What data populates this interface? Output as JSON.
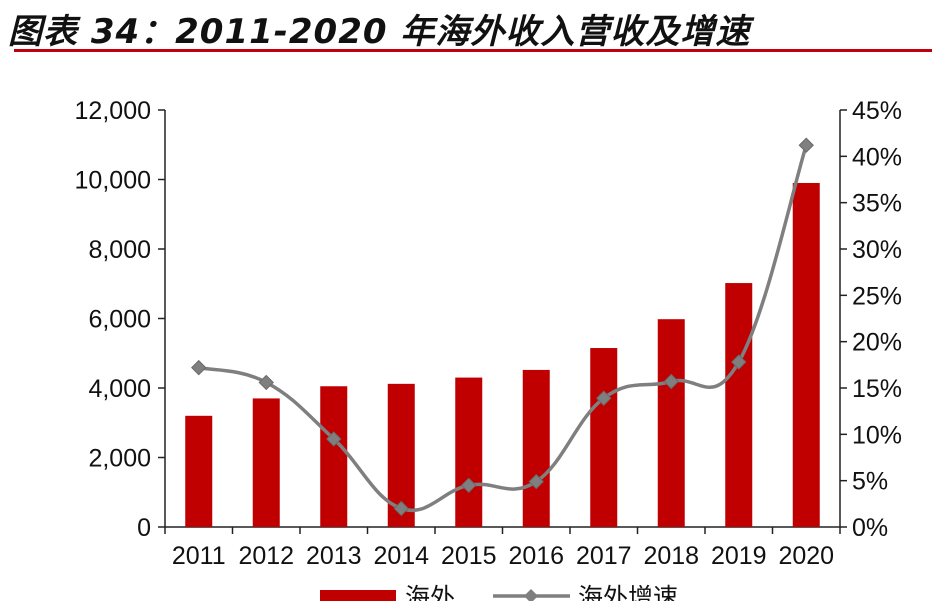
{
  "title": "图表 34：2011-2020 年海外收入营收及增速",
  "colors": {
    "bar": "#c00000",
    "line": "#7f7f7f",
    "marker": "#7f7f7f",
    "rule": "#c0000f"
  },
  "chart_data": {
    "type": "bar",
    "categories": [
      "2011",
      "2012",
      "2013",
      "2014",
      "2015",
      "2016",
      "2017",
      "2018",
      "2019",
      "2020"
    ],
    "series": [
      {
        "name": "海外",
        "type": "bar",
        "axis": "left",
        "values": [
          3200,
          3700,
          4050,
          4120,
          4300,
          4520,
          5150,
          5980,
          7020,
          9900
        ]
      },
      {
        "name": "海外增速",
        "type": "line",
        "axis": "right",
        "marker": "diamond",
        "values": [
          17.2,
          15.6,
          9.5,
          2.0,
          4.5,
          4.9,
          13.9,
          15.7,
          17.8,
          41.2
        ]
      }
    ],
    "y_left": {
      "min": 0,
      "max": 12000,
      "ticks": [
        0,
        2000,
        4000,
        6000,
        8000,
        10000,
        12000
      ],
      "tick_labels": [
        "0",
        "2,000",
        "4,000",
        "6,000",
        "8,000",
        "10,000",
        "12,000"
      ]
    },
    "y_right": {
      "min": 0,
      "max": 45,
      "ticks": [
        0,
        5,
        10,
        15,
        20,
        25,
        30,
        35,
        40,
        45
      ],
      "tick_labels": [
        "0%",
        "5%",
        "10%",
        "15%",
        "20%",
        "25%",
        "30%",
        "35%",
        "40%",
        "45%"
      ]
    },
    "grid": false,
    "legend": {
      "position": "bottom",
      "entries": [
        "海外",
        "海外增速"
      ]
    }
  }
}
